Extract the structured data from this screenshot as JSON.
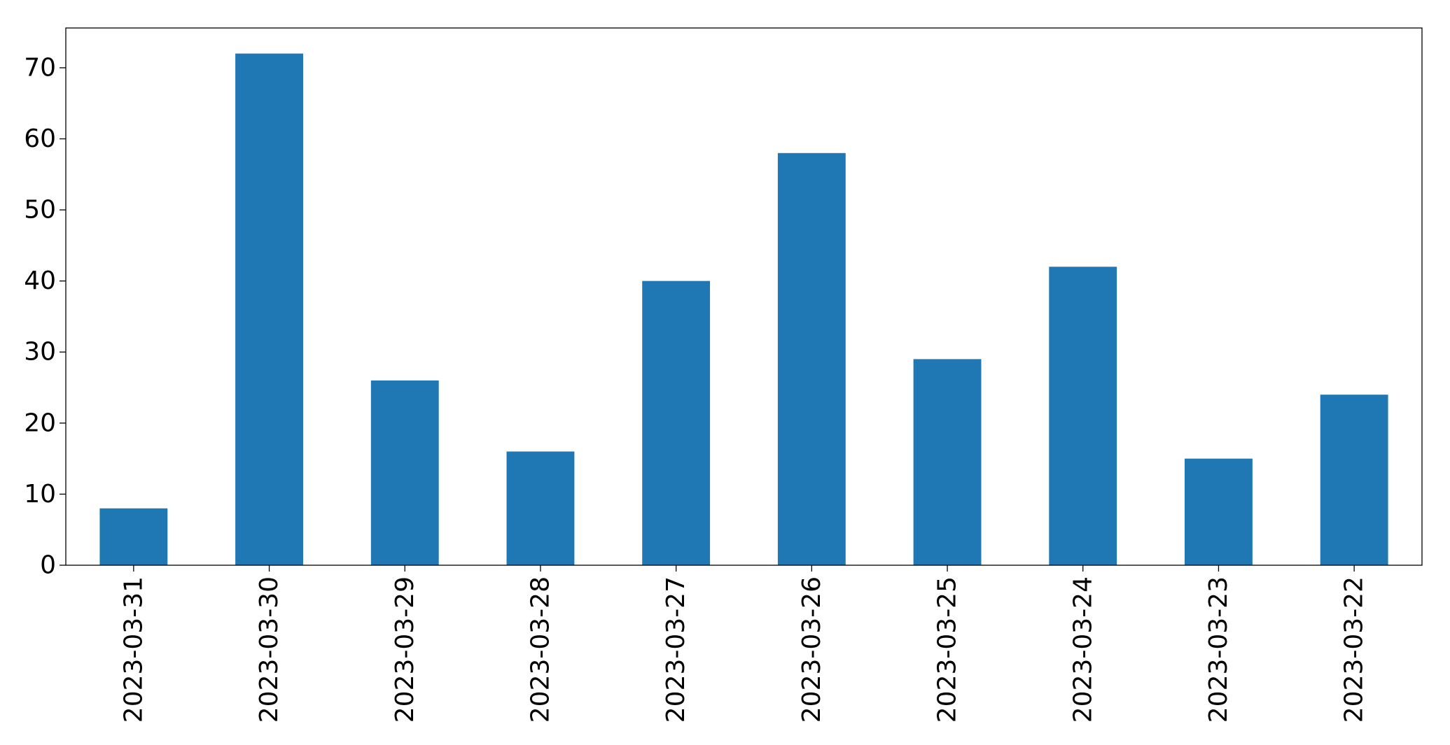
{
  "chart_data": {
    "type": "bar",
    "categories": [
      "2023-03-31",
      "2023-03-30",
      "2023-03-29",
      "2023-03-28",
      "2023-03-27",
      "2023-03-26",
      "2023-03-25",
      "2023-03-24",
      "2023-03-23",
      "2023-03-22"
    ],
    "values": [
      8,
      72,
      26,
      16,
      40,
      58,
      29,
      42,
      15,
      24
    ],
    "color": "#1f77b4",
    "ylim": [
      0,
      75.6
    ],
    "yticks": [
      0,
      10,
      20,
      30,
      40,
      50,
      60,
      70
    ],
    "grid": false
  }
}
